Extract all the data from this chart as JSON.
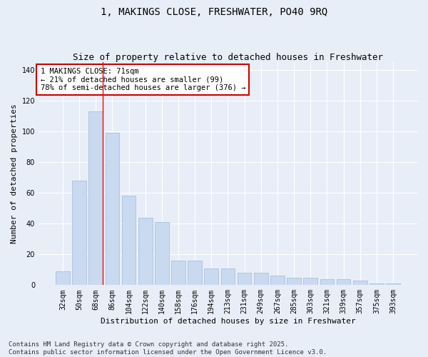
{
  "title_line1": "1, MAKINGS CLOSE, FRESHWATER, PO40 9RQ",
  "title_line2": "Size of property relative to detached houses in Freshwater",
  "xlabel": "Distribution of detached houses by size in Freshwater",
  "ylabel": "Number of detached properties",
  "categories": [
    "32sqm",
    "50sqm",
    "68sqm",
    "86sqm",
    "104sqm",
    "122sqm",
    "140sqm",
    "158sqm",
    "176sqm",
    "194sqm",
    "213sqm",
    "231sqm",
    "249sqm",
    "267sqm",
    "285sqm",
    "303sqm",
    "321sqm",
    "339sqm",
    "357sqm",
    "375sqm",
    "393sqm"
  ],
  "values": [
    9,
    68,
    113,
    99,
    58,
    44,
    41,
    16,
    16,
    11,
    11,
    8,
    8,
    6,
    5,
    5,
    4,
    4,
    3,
    1,
    1
  ],
  "bar_color": "#c9d9f0",
  "bar_edge_color": "#a0b8d8",
  "red_line_x": 2,
  "annotation_text": "1 MAKINGS CLOSE: 71sqm\n← 21% of detached houses are smaller (99)\n78% of semi-detached houses are larger (376) →",
  "annotation_box_color": "#ffffff",
  "annotation_box_edge": "#cc0000",
  "ylim": [
    0,
    145
  ],
  "yticks": [
    0,
    20,
    40,
    60,
    80,
    100,
    120,
    140
  ],
  "background_color": "#e8eef8",
  "plot_background": "#e8eef8",
  "footer_line1": "Contains HM Land Registry data © Crown copyright and database right 2025.",
  "footer_line2": "Contains public sector information licensed under the Open Government Licence v3.0.",
  "title_fontsize": 10,
  "subtitle_fontsize": 9,
  "axis_label_fontsize": 8,
  "tick_fontsize": 7,
  "annotation_fontsize": 7.5,
  "footer_fontsize": 6.5
}
